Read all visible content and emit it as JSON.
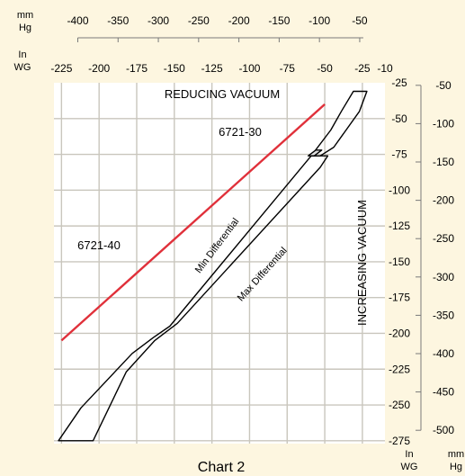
{
  "chart_data": {
    "type": "line",
    "caption": "Chart 2",
    "title": "",
    "grid": true,
    "x_axis_mmhg": {
      "unit_top": "mm",
      "unit_bottom": "Hg",
      "ticks": [
        -400,
        -350,
        -300,
        -250,
        -200,
        -150,
        -100,
        -50
      ]
    },
    "x_axis_inwg": {
      "unit_top": "In",
      "unit_bottom": "WG",
      "ticks": [
        -225,
        -200,
        -175,
        -150,
        -125,
        -100,
        -75,
        -50,
        -25,
        -10
      ],
      "range": [
        -230,
        -10
      ]
    },
    "y_axis_inwg": {
      "unit_top": "In",
      "unit_bottom": "WG",
      "ticks": [
        -25,
        -50,
        -75,
        -100,
        -125,
        -150,
        -175,
        -200,
        -225,
        -250,
        -275
      ],
      "range": [
        -25,
        -277
      ]
    },
    "y_axis_mmhg": {
      "unit_top": "mm",
      "unit_bottom": "Hg",
      "ticks": [
        -50,
        -100,
        -150,
        -200,
        -250,
        -300,
        -350,
        -400,
        -450,
        -500
      ]
    },
    "annotations": {
      "reducing": "REDUCING VACUUM",
      "increasing": "INCREASING VACUUM",
      "model_30": "6721-30",
      "model_40": "6721-40",
      "min_diff": "Min Differential",
      "max_diff": "Max Differential"
    },
    "series": [
      {
        "label": "6721-40",
        "color": "#e0303a",
        "points": [
          [
            -225,
            -205
          ],
          [
            -50,
            -40
          ]
        ]
      },
      {
        "label": "6721-30 band",
        "color": "#000000",
        "closed": true,
        "points": [
          [
            -31,
            -31
          ],
          [
            -22,
            -31
          ],
          [
            -27,
            -45
          ],
          [
            -44,
            -70
          ],
          [
            -53,
            -76
          ],
          [
            -59,
            -76
          ],
          [
            -46,
            -58
          ],
          [
            -39,
            -45
          ]
        ]
      },
      {
        "label": "6721-40 band",
        "color": "#000000",
        "closed": true,
        "points": [
          [
            -59,
            -76
          ],
          [
            -48,
            -76
          ],
          [
            -53,
            -84
          ],
          [
            -148,
            -193
          ],
          [
            -163,
            -205
          ],
          [
            -182,
            -227
          ],
          [
            -198,
            -262
          ],
          [
            -204,
            -275
          ],
          [
            -227,
            -275
          ],
          [
            -212,
            -252
          ],
          [
            -178,
            -214
          ],
          [
            -164,
            -203
          ],
          [
            -153,
            -195
          ],
          [
            -59,
            -76
          ]
        ]
      },
      {
        "label": "6721-30 small box",
        "color": "#000000",
        "closed": true,
        "fill": "#dedede",
        "points": [
          [
            -61,
            -76
          ],
          [
            -56,
            -72
          ],
          [
            -52,
            -72
          ],
          [
            -57,
            -76
          ]
        ]
      }
    ]
  }
}
